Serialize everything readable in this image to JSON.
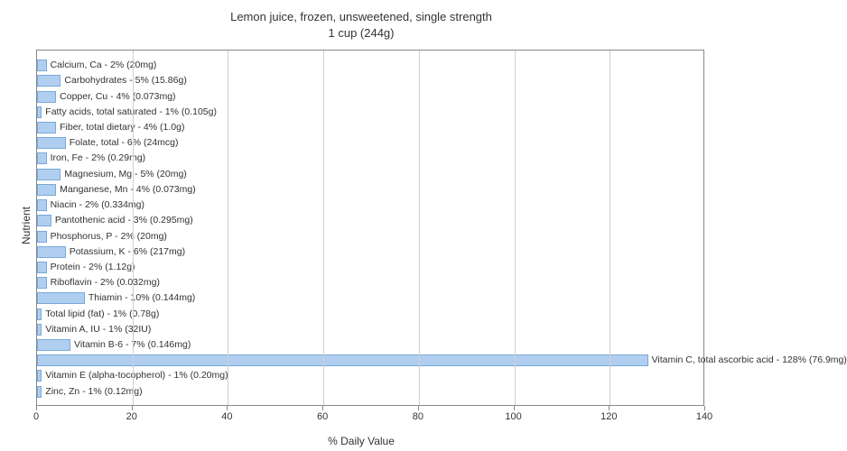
{
  "title_line1": "Lemon juice, frozen, unsweetened, single strength",
  "title_line2": "1 cup (244g)",
  "y_axis_label": "Nutrient",
  "x_axis_label": "% Daily Value",
  "chart": {
    "type": "bar-horizontal",
    "xlim": [
      0,
      140
    ],
    "xtick_step": 20,
    "bar_color": "#b0cff0",
    "bar_border_color": "#7aa8d8",
    "grid_color": "#d0d0d0",
    "background_color": "#ffffff",
    "label_fontsize": 10.5,
    "title_fontsize": 13,
    "axis_fontsize": 12
  },
  "nutrients": [
    {
      "label": "Calcium, Ca - 2% (20mg)",
      "value": 2
    },
    {
      "label": "Carbohydrates - 5% (15.86g)",
      "value": 5
    },
    {
      "label": "Copper, Cu - 4% (0.073mg)",
      "value": 4
    },
    {
      "label": "Fatty acids, total saturated - 1% (0.105g)",
      "value": 1
    },
    {
      "label": "Fiber, total dietary - 4% (1.0g)",
      "value": 4
    },
    {
      "label": "Folate, total - 6% (24mcg)",
      "value": 6
    },
    {
      "label": "Iron, Fe - 2% (0.29mg)",
      "value": 2
    },
    {
      "label": "Magnesium, Mg - 5% (20mg)",
      "value": 5
    },
    {
      "label": "Manganese, Mn - 4% (0.073mg)",
      "value": 4
    },
    {
      "label": "Niacin - 2% (0.334mg)",
      "value": 2
    },
    {
      "label": "Pantothenic acid - 3% (0.295mg)",
      "value": 3
    },
    {
      "label": "Phosphorus, P - 2% (20mg)",
      "value": 2
    },
    {
      "label": "Potassium, K - 6% (217mg)",
      "value": 6
    },
    {
      "label": "Protein - 2% (1.12g)",
      "value": 2
    },
    {
      "label": "Riboflavin - 2% (0.032mg)",
      "value": 2
    },
    {
      "label": "Thiamin - 10% (0.144mg)",
      "value": 10
    },
    {
      "label": "Total lipid (fat) - 1% (0.78g)",
      "value": 1
    },
    {
      "label": "Vitamin A, IU - 1% (32IU)",
      "value": 1
    },
    {
      "label": "Vitamin B-6 - 7% (0.146mg)",
      "value": 7
    },
    {
      "label": "Vitamin C, total ascorbic acid - 128% (76.9mg)",
      "value": 128
    },
    {
      "label": "Vitamin E (alpha-tocopherol) - 1% (0.20mg)",
      "value": 1
    },
    {
      "label": "Zinc, Zn - 1% (0.12mg)",
      "value": 1
    }
  ],
  "xticks": [
    {
      "label": "0",
      "value": 0
    },
    {
      "label": "20",
      "value": 20
    },
    {
      "label": "40",
      "value": 40
    },
    {
      "label": "60",
      "value": 60
    },
    {
      "label": "80",
      "value": 80
    },
    {
      "label": "100",
      "value": 100
    },
    {
      "label": "120",
      "value": 120
    },
    {
      "label": "140",
      "value": 140
    }
  ]
}
